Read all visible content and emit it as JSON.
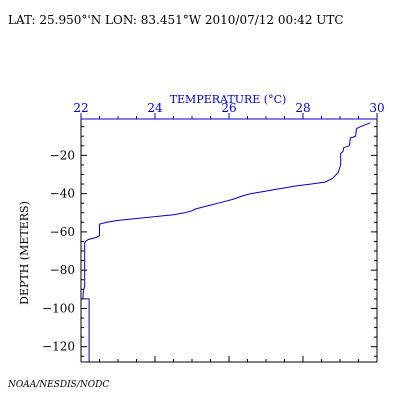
{
  "header": {
    "text": "LAT: 25.950°'N LON: 83.451°W 2010/07/12 00:42 UTC"
  },
  "footer": {
    "credit": "NOAA/NESDIS/NODC"
  },
  "colors": {
    "axis_top": "#0000cc",
    "profile_line": "#0000cc",
    "axis_frame": "#000000",
    "background": "#ffffff"
  },
  "chart_data": {
    "type": "line",
    "title": "",
    "xlabel": "TEMPERATURE (°C)",
    "ylabel": "DEPTH (METERS)",
    "x_axis_position": "top",
    "xlim": [
      22,
      30
    ],
    "ylim": [
      -128,
      -1
    ],
    "x_ticks": [
      22,
      24,
      26,
      28,
      30
    ],
    "y_ticks": [
      -20,
      -40,
      -60,
      -80,
      -100,
      -120
    ],
    "grid": false,
    "legend": "none",
    "series": [
      {
        "values_note": "",
        "x": [
          29.82,
          29.55,
          29.45,
          29.42,
          29.28,
          29.25,
          29.1,
          29.08,
          29.02,
          29.02,
          28.95,
          28.8,
          28.6,
          28.2,
          27.8,
          27.5,
          27.2,
          26.9,
          26.6,
          26.4,
          26.1,
          25.9,
          25.7,
          25.5,
          25.3,
          25.1,
          25.0,
          24.8,
          24.5,
          24.0,
          23.5,
          23.0,
          22.7,
          22.5,
          22.5,
          22.4,
          22.2,
          22.12,
          22.1,
          22.1,
          22.1,
          22.06,
          22.05,
          22.22,
          22.22
        ],
        "y": [
          -3,
          -5,
          -6,
          -10,
          -11,
          -15,
          -16,
          -18,
          -19,
          -25,
          -29,
          -32,
          -34,
          -35,
          -36,
          -37,
          -38,
          -39,
          -40,
          -41,
          -43,
          -44,
          -45,
          -46,
          -47,
          -48,
          -49,
          -50,
          -51,
          -52,
          -53,
          -54,
          -55,
          -56,
          -62,
          -63,
          -64,
          -65,
          -66,
          -80,
          -88,
          -92,
          -95,
          -95,
          -128
        ]
      }
    ]
  }
}
